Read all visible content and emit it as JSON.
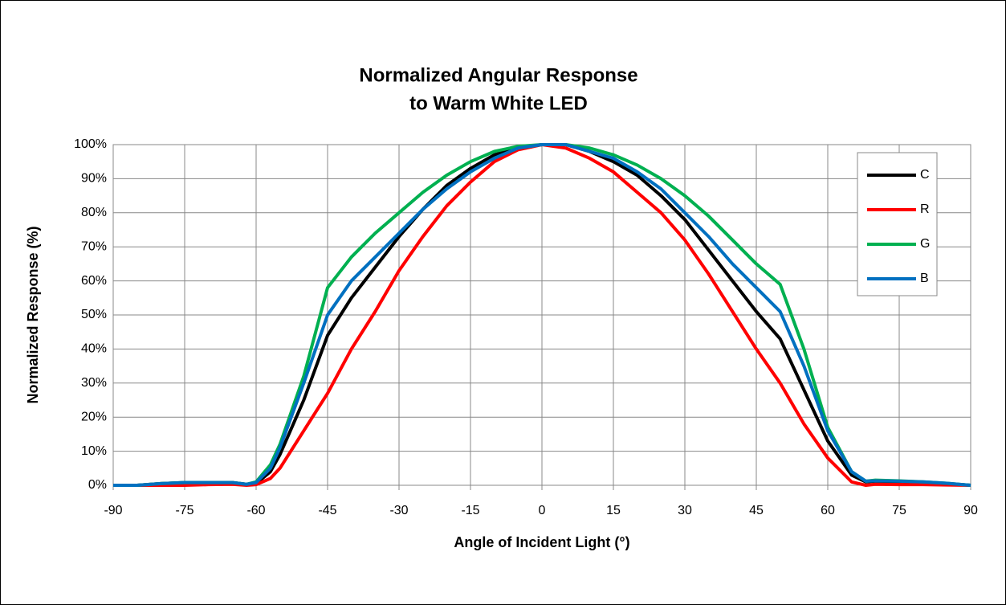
{
  "chart_data": {
    "type": "line",
    "title": [
      "Normalized Angular Response",
      "to Warm White LED"
    ],
    "x_label": "Angle of Incident Light (°)",
    "y_label": "Normalized Response (%)",
    "x": [
      -90,
      -85,
      -80,
      -75,
      -70,
      -65,
      -62,
      -60,
      -57,
      -55,
      -50,
      -45,
      -40,
      -35,
      -30,
      -25,
      -20,
      -15,
      -10,
      -5,
      0,
      5,
      10,
      15,
      20,
      25,
      30,
      35,
      40,
      45,
      50,
      55,
      60,
      65,
      68,
      70,
      75,
      80,
      85,
      90
    ],
    "series": [
      {
        "name": "C",
        "color": "#000000",
        "values": [
          0,
          0,
          0.5,
          0.8,
          0.8,
          0.8,
          0.3,
          0.5,
          4,
          9,
          25,
          44,
          55,
          64,
          73,
          81,
          88,
          93,
          97,
          99,
          100,
          100,
          98,
          95,
          91,
          85,
          78,
          69,
          60,
          51,
          43,
          28,
          13,
          3,
          1,
          1.2,
          1,
          0.8,
          0.5,
          0
        ]
      },
      {
        "name": "R",
        "color": "#ff0000",
        "values": [
          0,
          0,
          0,
          0,
          0.2,
          0.3,
          0,
          0.2,
          2,
          5,
          16,
          27,
          40,
          51,
          63,
          73,
          82,
          89,
          95,
          98.5,
          100,
          99,
          96,
          92,
          86,
          80,
          72,
          62,
          51,
          40,
          30,
          18,
          8,
          1,
          0,
          0.3,
          0.2,
          0.2,
          0.1,
          0
        ]
      },
      {
        "name": "G",
        "color": "#00b050",
        "values": [
          0,
          0,
          0.5,
          0.8,
          0.8,
          0.8,
          0.3,
          1,
          6,
          12,
          32,
          58,
          67,
          74,
          80,
          86,
          91,
          95,
          98,
          99.5,
          100,
          100,
          99,
          97,
          94,
          90,
          85,
          79,
          72,
          65,
          59,
          40,
          17,
          4,
          1.2,
          1.5,
          1.3,
          1,
          0.6,
          0
        ]
      },
      {
        "name": "B",
        "color": "#0070c0",
        "values": [
          0,
          0,
          0.5,
          0.8,
          0.8,
          0.8,
          0.3,
          0.8,
          5,
          11,
          30,
          50,
          60,
          67,
          74,
          81,
          87,
          92,
          96,
          99,
          100,
          100,
          98,
          96,
          92,
          87,
          80,
          73,
          65,
          58,
          51,
          35,
          16,
          4,
          1.2,
          1.3,
          1.2,
          1,
          0.6,
          0
        ]
      }
    ],
    "xlim": [
      -90,
      90
    ],
    "xticks": [
      -90,
      -75,
      -60,
      -45,
      -30,
      -15,
      0,
      15,
      30,
      45,
      60,
      75,
      90
    ],
    "ylim": [
      0,
      100
    ],
    "yticks": [
      {
        "value": 0,
        "label": "0%"
      },
      {
        "value": 10,
        "label": "10%"
      },
      {
        "value": 20,
        "label": "20%"
      },
      {
        "value": 30,
        "label": "30%"
      },
      {
        "value": 40,
        "label": "40%"
      },
      {
        "value": 50,
        "label": "50%"
      },
      {
        "value": 60,
        "label": "60%"
      },
      {
        "value": 70,
        "label": "70%"
      },
      {
        "value": 80,
        "label": "80%"
      },
      {
        "value": 90,
        "label": "90%"
      },
      {
        "value": 100,
        "label": "100%"
      }
    ],
    "grid": true,
    "legend": "upper right"
  }
}
